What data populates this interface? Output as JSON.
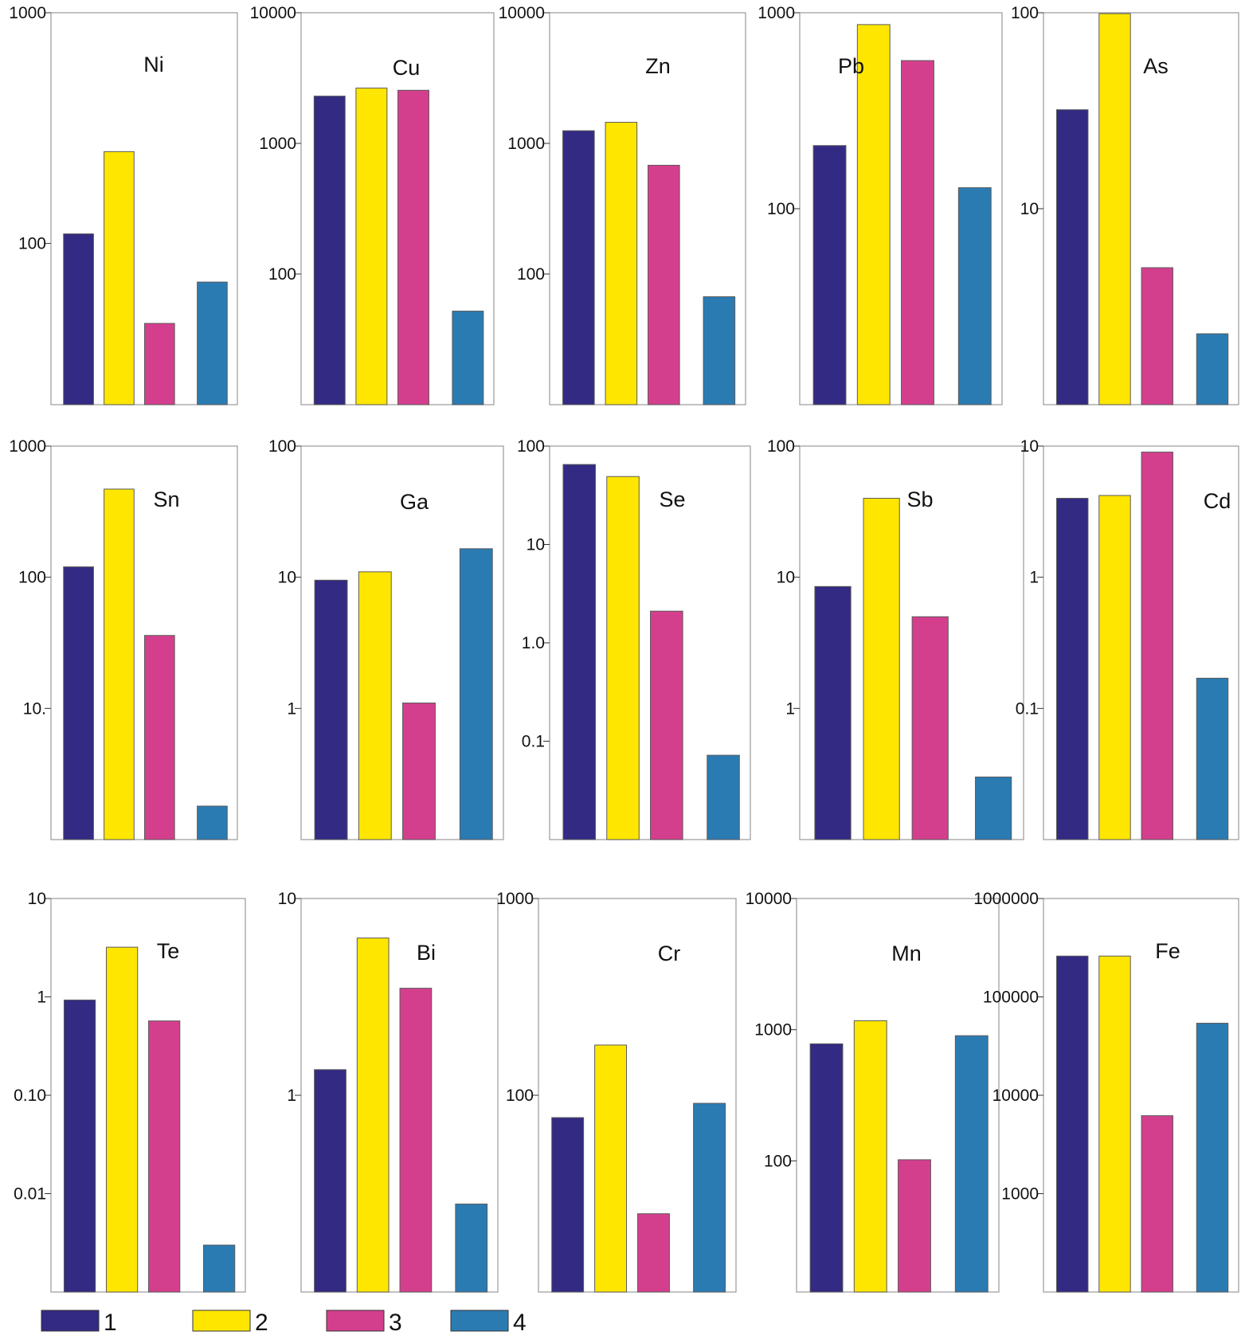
{
  "colors": {
    "s1": "#332a83",
    "s2": "#ffe600",
    "s3": "#d43f8d",
    "s4": "#2b7bb3"
  },
  "legend": [
    {
      "label": "1",
      "color": "#332a83"
    },
    {
      "label": "2",
      "color": "#ffe600"
    },
    {
      "label": "3",
      "color": "#d43f8d"
    },
    {
      "label": "4",
      "color": "#2b7bb3"
    }
  ],
  "chart_data": [
    {
      "type": "bar",
      "title": "Ni",
      "scale": "log",
      "ylim": [
        20,
        1000
      ],
      "ticks": [
        {
          "v": 100,
          "label": "100"
        },
        {
          "v": 1000,
          "label": "1000"
        }
      ],
      "series_labels": [
        "1",
        "2",
        "3",
        "4"
      ],
      "values": [
        110,
        250,
        45,
        68
      ]
    },
    {
      "type": "bar",
      "title": "Cu",
      "scale": "log",
      "ylim": [
        10,
        10000
      ],
      "ticks": [
        {
          "v": 100,
          "label": "100"
        },
        {
          "v": 1000,
          "label": "1000"
        },
        {
          "v": 10000,
          "label": "10000"
        }
      ],
      "series_labels": [
        "1",
        "2",
        "3",
        "4"
      ],
      "values": [
        2300,
        2650,
        2550,
        52
      ]
    },
    {
      "type": "bar",
      "title": "Zn",
      "scale": "log",
      "ylim": [
        10,
        10000
      ],
      "ticks": [
        {
          "v": 100,
          "label": "100"
        },
        {
          "v": 1000,
          "label": "1000"
        },
        {
          "v": 10000,
          "label": "10000"
        }
      ],
      "series_labels": [
        "1",
        "2",
        "3",
        "4"
      ],
      "values": [
        1250,
        1450,
        680,
        67
      ]
    },
    {
      "type": "bar",
      "title": "Pb",
      "scale": "log",
      "ylim": [
        10,
        1000
      ],
      "ticks": [
        {
          "v": 100,
          "label": "100"
        },
        {
          "v": 1000,
          "label": "1000"
        }
      ],
      "series_labels": [
        "1",
        "2",
        "3",
        "4"
      ],
      "values": [
        210,
        870,
        570,
        128
      ]
    },
    {
      "type": "bar",
      "title": "As",
      "scale": "log",
      "ylim": [
        1,
        100
      ],
      "ticks": [
        {
          "v": 10,
          "label": "10"
        },
        {
          "v": 100,
          "label": "100"
        }
      ],
      "series_labels": [
        "1",
        "2",
        "3",
        "4"
      ],
      "values": [
        32,
        99,
        5,
        2.3
      ]
    },
    {
      "type": "bar",
      "title": "Sn",
      "scale": "log",
      "ylim": [
        1,
        1000
      ],
      "ticks": [
        {
          "v": 10,
          "label": "10."
        },
        {
          "v": 100,
          "label": "100"
        },
        {
          "v": 1000,
          "label": "1000"
        }
      ],
      "series_labels": [
        "1",
        "2",
        "3",
        "4"
      ],
      "values": [
        120,
        470,
        36,
        1.8
      ]
    },
    {
      "type": "bar",
      "title": "Ga",
      "scale": "log",
      "ylim": [
        0.1,
        100
      ],
      "ticks": [
        {
          "v": 1,
          "label": "1"
        },
        {
          "v": 10,
          "label": "10"
        },
        {
          "v": 100,
          "label": "100"
        }
      ],
      "series_labels": [
        "1",
        "2",
        "3",
        "4"
      ],
      "values": [
        9.5,
        11,
        1.1,
        16.5
      ]
    },
    {
      "type": "bar",
      "title": "Se",
      "scale": "log",
      "ylim": [
        0.01,
        100
      ],
      "ticks": [
        {
          "v": 0.1,
          "label": "0.1"
        },
        {
          "v": 1,
          "label": "1.0"
        },
        {
          "v": 10,
          "label": "10"
        },
        {
          "v": 100,
          "label": "100"
        }
      ],
      "series_labels": [
        "1",
        "2",
        "3",
        "4"
      ],
      "values": [
        65,
        49,
        2.1,
        0.072
      ]
    },
    {
      "type": "bar",
      "title": "Sb",
      "scale": "log",
      "ylim": [
        0.1,
        100
      ],
      "ticks": [
        {
          "v": 1,
          "label": "1"
        },
        {
          "v": 10,
          "label": "10"
        },
        {
          "v": 100,
          "label": "100"
        }
      ],
      "series_labels": [
        "1",
        "2",
        "3",
        "4"
      ],
      "values": [
        8.5,
        40,
        5,
        0.3
      ]
    },
    {
      "type": "bar",
      "title": "Cd",
      "scale": "log",
      "ylim": [
        0.01,
        10
      ],
      "ticks": [
        {
          "v": 0.1,
          "label": "0.1"
        },
        {
          "v": 1,
          "label": "1"
        },
        {
          "v": 10,
          "label": "10"
        }
      ],
      "series_labels": [
        "1",
        "2",
        "3",
        "4"
      ],
      "values": [
        4,
        4.2,
        9,
        0.17
      ]
    },
    {
      "type": "bar",
      "title": "Te",
      "scale": "log",
      "ylim": [
        0.001,
        10
      ],
      "ticks": [
        {
          "v": 0.01,
          "label": "0.01"
        },
        {
          "v": 0.1,
          "label": "0.10"
        },
        {
          "v": 1,
          "label": "1"
        },
        {
          "v": 10,
          "label": "10"
        }
      ],
      "series_labels": [
        "1",
        "2",
        "3",
        "4"
      ],
      "values": [
        0.93,
        3.2,
        0.57,
        0.003
      ]
    },
    {
      "type": "bar",
      "title": "Bi",
      "scale": "log",
      "ylim": [
        0.1,
        10
      ],
      "ticks": [
        {
          "v": 1,
          "label": "1"
        },
        {
          "v": 10,
          "label": "10"
        }
      ],
      "series_labels": [
        "1",
        "2",
        "3",
        "4"
      ],
      "values": [
        1.35,
        6.3,
        3.5,
        0.28
      ]
    },
    {
      "type": "bar",
      "title": "Cr",
      "scale": "log",
      "ylim": [
        10,
        1000
      ],
      "ticks": [
        {
          "v": 100,
          "label": "100"
        },
        {
          "v": 1000,
          "label": "1000"
        }
      ],
      "series_labels": [
        "1",
        "2",
        "3",
        "4"
      ],
      "values": [
        77,
        180,
        25,
        91
      ]
    },
    {
      "type": "bar",
      "title": "Mn",
      "scale": "log",
      "ylim": [
        10,
        10000
      ],
      "ticks": [
        {
          "v": 100,
          "label": "100"
        },
        {
          "v": 1000,
          "label": "1000"
        },
        {
          "v": 10000,
          "label": "10000"
        }
      ],
      "series_labels": [
        "1",
        "2",
        "3",
        "4"
      ],
      "values": [
        780,
        1170,
        102,
        900
      ]
    },
    {
      "type": "bar",
      "title": "Fe",
      "scale": "log",
      "ylim": [
        100,
        1000000
      ],
      "ticks": [
        {
          "v": 1000,
          "label": "1000"
        },
        {
          "v": 10000,
          "label": "10000"
        },
        {
          "v": 100000,
          "label": "100000"
        },
        {
          "v": 1000000,
          "label": "1000000"
        }
      ],
      "series_labels": [
        "1",
        "2",
        "3",
        "4"
      ],
      "values": [
        260000,
        260000,
        6200,
        54000
      ]
    }
  ]
}
